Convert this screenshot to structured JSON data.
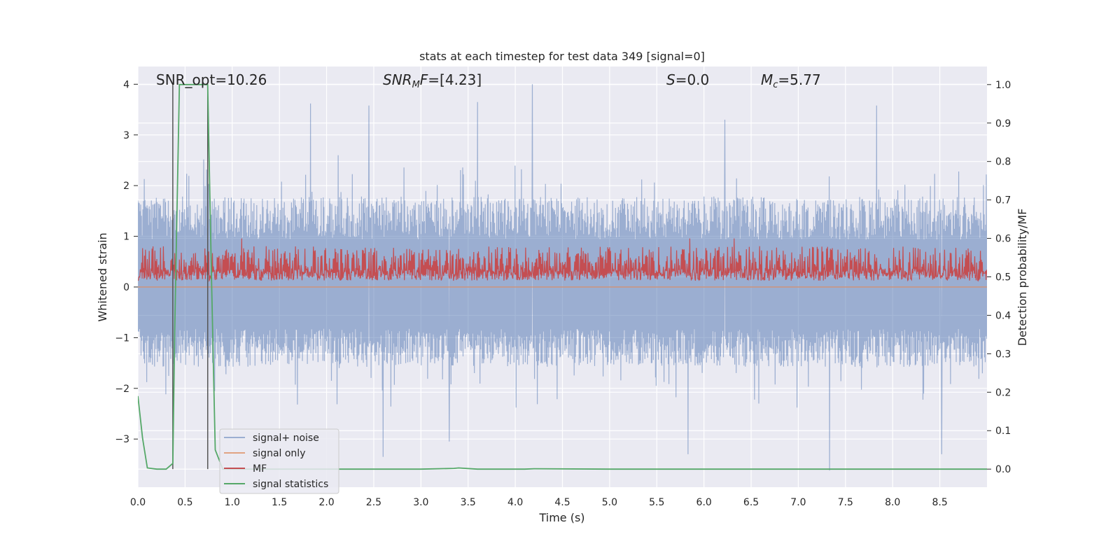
{
  "chart_data": {
    "type": "line",
    "title": "stats at each timestep for test data 349 [signal=0]",
    "xlabel": "Time (s)",
    "ylabel": "Whitened strain",
    "y2label": "Detection probability/MF",
    "xlim": [
      0,
      9.0
    ],
    "ylim": [
      -3.95,
      4.35
    ],
    "y2lim": [
      -0.047,
      1.047
    ],
    "x_ticks": [
      "0.0",
      "0.5",
      "1.0",
      "1.5",
      "2.0",
      "2.5",
      "3.0",
      "3.5",
      "4.0",
      "4.5",
      "5.0",
      "5.5",
      "6.0",
      "6.5",
      "7.0",
      "7.5",
      "8.0",
      "8.5"
    ],
    "x_tick_values": [
      0,
      0.5,
      1.0,
      1.5,
      2.0,
      2.5,
      3.0,
      3.5,
      4.0,
      4.5,
      5.0,
      5.5,
      6.0,
      6.5,
      7.0,
      7.5,
      8.0,
      8.5
    ],
    "y_ticks": [
      "−3",
      "−2",
      "−1",
      "0",
      "1",
      "2",
      "3",
      "4"
    ],
    "y_tick_values": [
      -3,
      -2,
      -1,
      0,
      1,
      2,
      3,
      4
    ],
    "y2_ticks": [
      "0.0",
      "0.1",
      "0.2",
      "0.3",
      "0.4",
      "0.5",
      "0.6",
      "0.7",
      "0.8",
      "0.9",
      "1.0"
    ],
    "y2_tick_values": [
      0,
      0.1,
      0.2,
      0.3,
      0.4,
      0.5,
      0.6,
      0.7,
      0.8,
      0.9,
      1.0
    ],
    "grid": true,
    "legend_position": "lower-left",
    "annotations": {
      "snr_opt": "SNR_opt=10.26",
      "snr_mf_main": "SNR",
      "snr_mf_sub": "M",
      "snr_mf_tail": "F",
      "snr_mf_value": "=[4.23]",
      "s_var": "S",
      "s_value": "=0.0",
      "mc_var": "M",
      "mc_sub": "c",
      "mc_value": "=5.77"
    },
    "vertical_markers_x": [
      0.37,
      0.74
    ],
    "series": [
      {
        "name": "signal+ noise",
        "color": "#4c72b0",
        "axis": "left",
        "kind": "noise",
        "envelope_typical": [
          -1.5,
          1.7
        ],
        "envelope_extremes": [
          -3.65,
          4.0
        ],
        "spikes": [
          [
            1.83,
            3.62
          ],
          [
            2.45,
            3.58
          ],
          [
            3.6,
            3.65
          ],
          [
            4.18,
            4.0
          ],
          [
            6.22,
            3.3
          ],
          [
            7.83,
            3.58
          ],
          [
            2.6,
            -3.35
          ],
          [
            3.3,
            -3.05
          ],
          [
            5.83,
            -3.3
          ],
          [
            7.33,
            -3.62
          ],
          [
            8.52,
            -3.3
          ]
        ]
      },
      {
        "name": "signal only",
        "color": "#dd8452",
        "axis": "left",
        "kind": "flat",
        "value": 0.0
      },
      {
        "name": "MF",
        "color": "#c44e52",
        "axis": "right",
        "kind": "band",
        "band": [
          0.49,
          0.58
        ],
        "spikes": [
          [
            1.1,
            0.6
          ],
          [
            5.85,
            0.6
          ],
          [
            6.32,
            0.6
          ]
        ]
      },
      {
        "name": "signal statistics",
        "color": "#55a868",
        "axis": "right",
        "x": [
          0.0,
          0.05,
          0.1,
          0.2,
          0.3,
          0.37,
          0.39,
          0.44,
          0.5,
          0.6,
          0.7,
          0.74,
          0.78,
          0.82,
          0.9,
          1.0,
          2.0,
          3.0,
          3.35,
          3.4,
          3.6,
          4.1,
          4.2,
          5.0,
          6.0,
          7.0,
          8.0,
          9.0
        ],
        "y": [
          0.19,
          0.08,
          0.003,
          0.0,
          0.0,
          0.015,
          0.36,
          1.0,
          1.0,
          1.0,
          1.0,
          1.0,
          0.5,
          0.05,
          0.0,
          0.0,
          0.0,
          0.0,
          0.002,
          0.003,
          0.0,
          0.0,
          0.001,
          0.0,
          0.0,
          0.0,
          0.0,
          0.0
        ]
      }
    ]
  }
}
